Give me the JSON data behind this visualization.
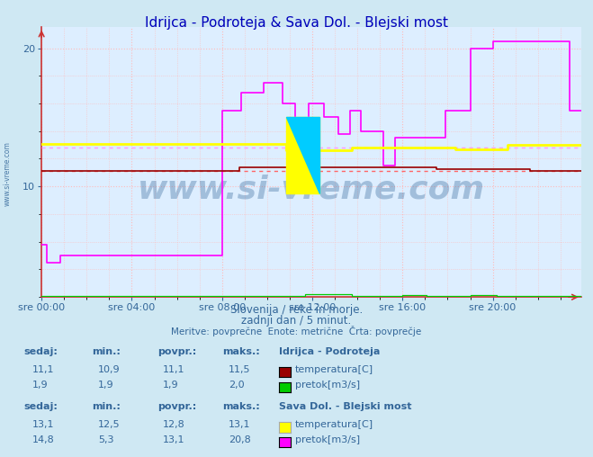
{
  "title": "Idrijca - Podroteja & Sava Dol. - Blejski most",
  "n_points": 288,
  "ylim": [
    2,
    21.5
  ],
  "yticks": [
    10,
    20
  ],
  "xtick_pos": [
    0,
    48,
    96,
    144,
    192,
    240
  ],
  "xtick_labels": [
    "sre 00:00",
    "sre 04:00",
    "sre 08:00",
    "sre 12:00",
    "sre 16:00",
    "sre 20:00"
  ],
  "fig_bg": "#cfe8f3",
  "plot_bg": "#ddeeff",
  "grid_color": "#ffbbbb",
  "title_color": "#0000bb",
  "label_color": "#336699",
  "idrijca_temp_color": "#990000",
  "idrijca_pretok_color": "#00cc00",
  "sava_temp_color": "#ffff00",
  "sava_pretok_color": "#ff00ff",
  "avg_idrijca_color": "#ff6666",
  "avg_sava_color": "#ff99ff",
  "idrijca_temp_avg": 11.1,
  "sava_temp_avg": 12.8,
  "subtitle1": "Slovenija / reke in morje.",
  "subtitle2": "zadnji dan / 5 minut.",
  "subtitle3": "Meritve: povprečne  Enote: metrične  Črta: povprečje",
  "legend_color": "#336699",
  "idrijca_label": "Idrijca - Podroteja",
  "sava_label": "Sava Dol. - Blejski most",
  "temp_label": "temperatura[C]",
  "pretok_label": "pretok[m3/s]",
  "idrijca_sedaj_temp": "11,1",
  "idrijca_min_temp": "10,9",
  "idrijca_povpr_temp": "11,1",
  "idrijca_maks_temp": "11,5",
  "idrijca_sedaj_pretok": "1,9",
  "idrijca_min_pretok": "1,9",
  "idrijca_povpr_pretok": "1,9",
  "idrijca_maks_pretok": "2,0",
  "sava_sedaj_temp": "13,1",
  "sava_min_temp": "12,5",
  "sava_povpr_temp": "12,8",
  "sava_maks_temp": "13,1",
  "sava_sedaj_pretok": "14,8",
  "sava_min_pretok": "5,3",
  "sava_povpr_pretok": "13,1",
  "sava_maks_pretok": "20,8",
  "watermark": "www.si-vreme.com",
  "left_watermark": "www.si-vreme.com"
}
